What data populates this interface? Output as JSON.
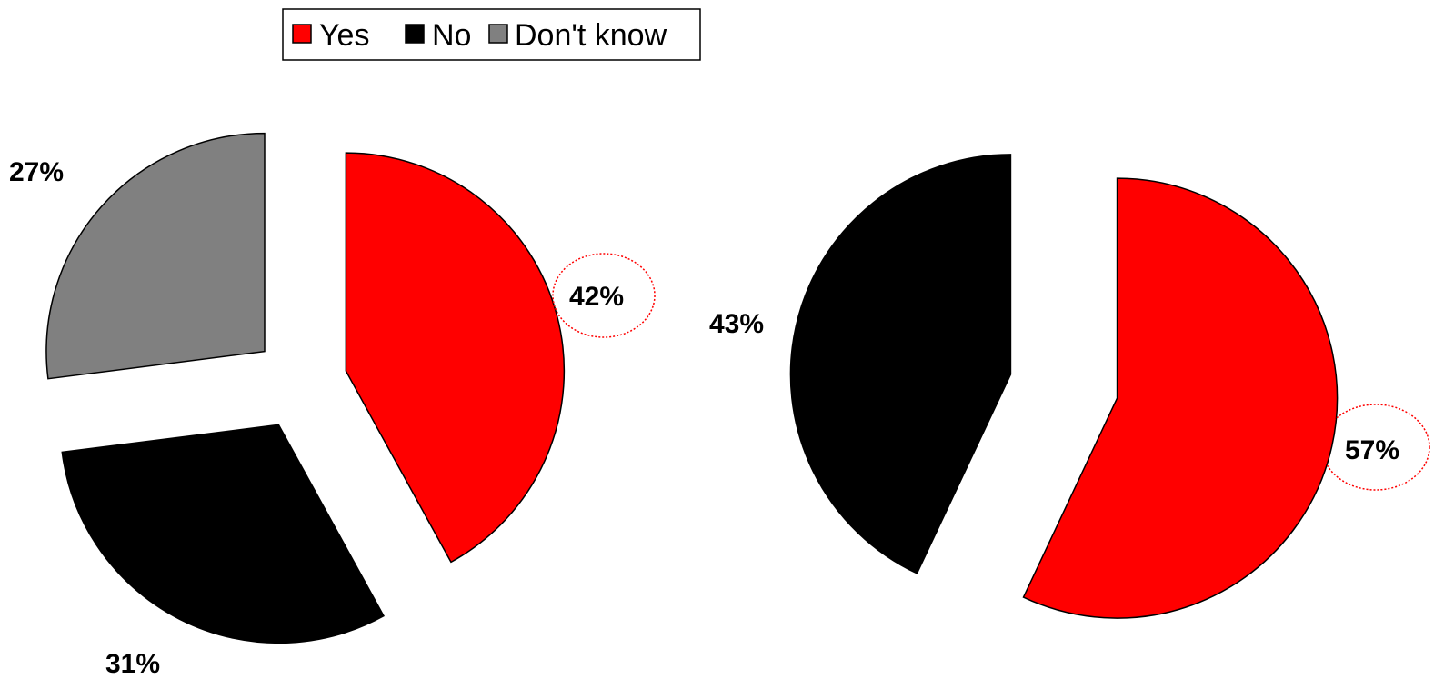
{
  "legend": {
    "items": [
      {
        "label": "Yes",
        "color": "#ff0000"
      },
      {
        "label": "No",
        "color": "#000000"
      },
      {
        "label": "Don't know",
        "color": "#808080"
      }
    ]
  },
  "chart_data": [
    {
      "type": "pie",
      "title": "",
      "slices": [
        {
          "category": "Yes",
          "value": 42,
          "label": "42%",
          "color": "#ff0000",
          "highlighted": true
        },
        {
          "category": "No",
          "value": 31,
          "label": "31%",
          "color": "#000000",
          "highlighted": false
        },
        {
          "category": "Don't know",
          "value": 27,
          "label": "27%",
          "color": "#808080",
          "highlighted": false
        }
      ],
      "exploded": true,
      "legend_position": "top"
    },
    {
      "type": "pie",
      "title": "",
      "slices": [
        {
          "category": "Yes",
          "value": 57,
          "label": "57%",
          "color": "#ff0000",
          "highlighted": true
        },
        {
          "category": "No",
          "value": 43,
          "label": "43%",
          "color": "#000000",
          "highlighted": false
        }
      ],
      "exploded": true,
      "legend_position": "top"
    }
  ]
}
